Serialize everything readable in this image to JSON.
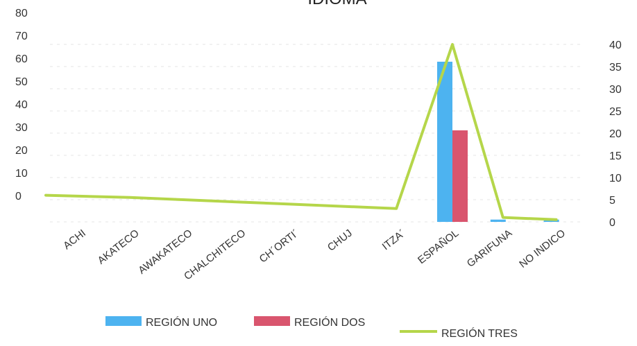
{
  "chart_data": {
    "type": "bar",
    "title": "IDIOMA",
    "categories": [
      "ACHI",
      "AKATECO",
      "AWAKATECO",
      "CHALCHITECO",
      "CH´ORTI´",
      "CHUJ",
      "ITZA´",
      "ESPAÑOL",
      "GARIFUNA",
      "NO INDICO"
    ],
    "series": [
      {
        "name": "REGIÓN UNO",
        "type": "bar",
        "axis": "left",
        "color": "#4db3f0",
        "values": [
          0,
          0,
          0,
          0,
          0,
          0,
          0,
          70,
          1,
          1
        ]
      },
      {
        "name": "REGIÓN DOS",
        "type": "bar",
        "axis": "left",
        "color": "#d9556e",
        "values": [
          0,
          0,
          0,
          0,
          0,
          0,
          0,
          40,
          0,
          0
        ]
      },
      {
        "name": "REGIÓN TRES",
        "type": "line",
        "axis": "right",
        "color": "#b5d64a",
        "values": [
          6,
          5.5,
          5,
          4.5,
          4,
          3.5,
          3,
          40,
          1,
          0.5
        ]
      }
    ],
    "y_left": {
      "ylim": [
        0,
        80
      ],
      "ticks": [
        "0",
        "10",
        "20",
        "30",
        "40",
        "50",
        "60",
        "70",
        "80"
      ]
    },
    "y_right": {
      "ylim": [
        0,
        40
      ],
      "ticks": [
        "0",
        "5",
        "10",
        "15",
        "20",
        "25",
        "30",
        "35",
        "40"
      ]
    },
    "grid": true,
    "legend_position": "bottom"
  }
}
